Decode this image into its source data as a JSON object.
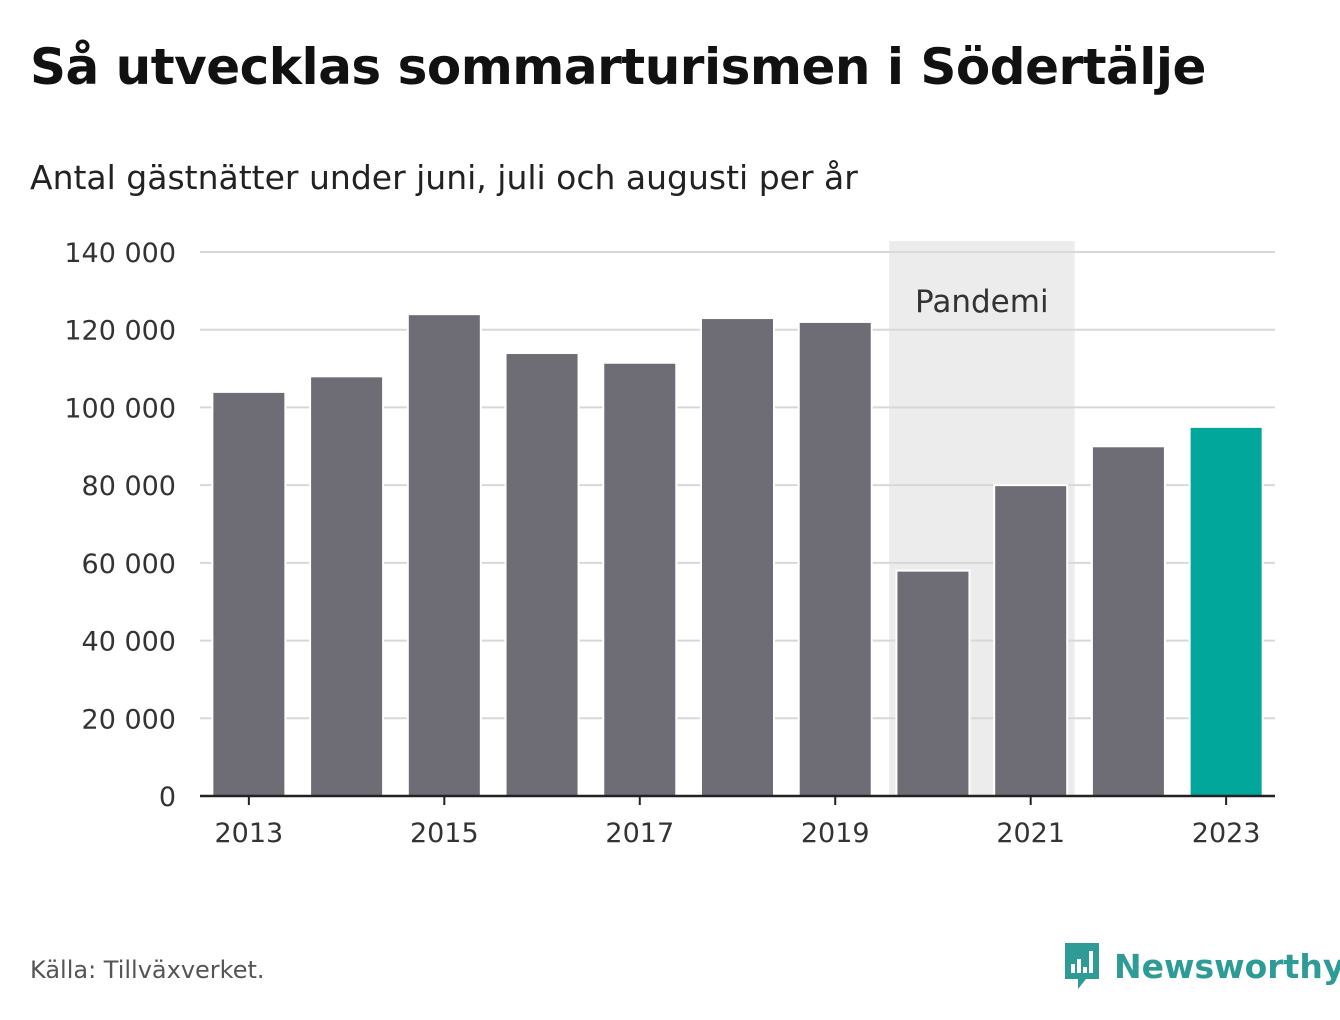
{
  "header": {
    "title": "Så utvecklas sommarturismen i Södertälje",
    "subtitle": "Antal gästnätter under juni, juli och augusti per år"
  },
  "footer": {
    "source": "Källa: Tillväxverket.",
    "logo_label": "Newsworthy",
    "logo_icon": "bar-chart-speech-bubble-icon"
  },
  "colors": {
    "bar": "#6e6d75",
    "highlight": "#00a79a",
    "shade": "#ececec",
    "grid": "#d8d8d8",
    "axis": "#222222",
    "logo": "#2e9b96"
  },
  "chart_data": {
    "type": "bar",
    "title": "Så utvecklas sommarturismen i Södertälje",
    "subtitle": "Antal gästnätter under juni, juli och augusti per år",
    "categories": [
      "2013",
      "2014",
      "2015",
      "2016",
      "2017",
      "2018",
      "2019",
      "2020",
      "2021",
      "2022",
      "2023"
    ],
    "values": [
      104000,
      108000,
      124000,
      114000,
      111500,
      123000,
      122000,
      58000,
      80000,
      90000,
      95000
    ],
    "highlight_category": "2023",
    "x_tick_labels": [
      "2013",
      "2015",
      "2017",
      "2019",
      "2021",
      "2023"
    ],
    "y_ticks": [
      0,
      20000,
      40000,
      60000,
      80000,
      100000,
      120000,
      140000
    ],
    "y_tick_labels": [
      "0",
      "20 000",
      "40 000",
      "60 000",
      "80 000",
      "100 000",
      "120 000",
      "140 000"
    ],
    "ylim": [
      0,
      140000
    ],
    "grid": true,
    "shaded_region": {
      "from": "2020",
      "to": "2021",
      "label": "Pandemi"
    },
    "source": "Källa: Tillväxverket."
  }
}
